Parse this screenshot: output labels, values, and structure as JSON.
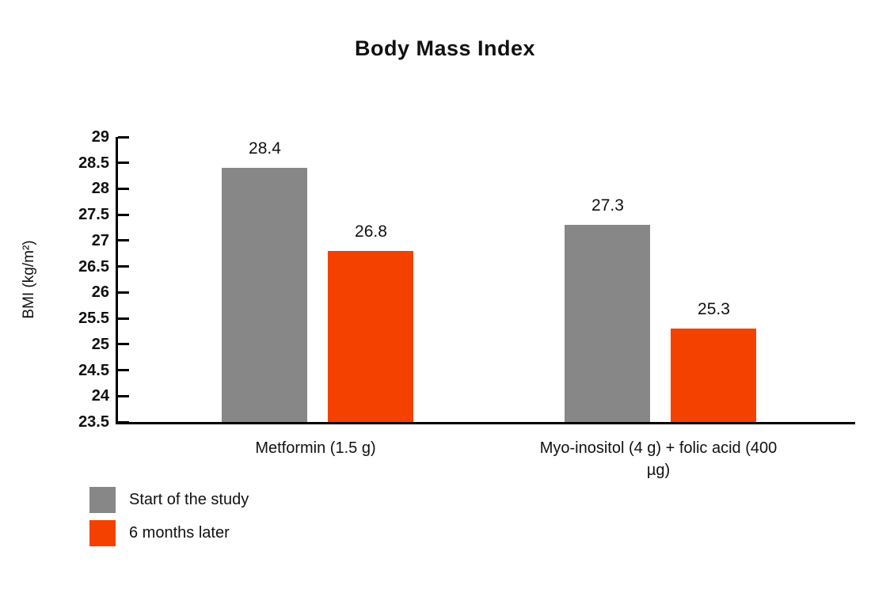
{
  "chart_data": {
    "type": "bar",
    "title": "Body Mass Index",
    "xlabel": "",
    "ylabel": "BMI (kg/m²)",
    "categories": [
      "Metformin (1.5 g)",
      "Myo-inositol (4 g) + folic acid (400 µg)"
    ],
    "series": [
      {
        "name": "Start of the study",
        "color": "#878787",
        "values": [
          28.4,
          27.3
        ],
        "value_labels": [
          "28.4",
          "27.3"
        ]
      },
      {
        "name": "6 months later",
        "color": "#f44100",
        "values": [
          26.8,
          25.3
        ],
        "value_labels": [
          "26.8",
          "25.3"
        ]
      }
    ],
    "ylim": [
      23.5,
      29
    ],
    "ytick_step": 0.5,
    "yticks": [
      "29",
      "28.5",
      "28",
      "27.5",
      "27",
      "26.5",
      "26",
      "25.5",
      "25",
      "24.5",
      "24",
      "23.5"
    ],
    "grid": false,
    "legend_position": "bottom-left",
    "colors": {
      "axis": "#000000",
      "text": "#111111",
      "background": "#ffffff"
    }
  }
}
